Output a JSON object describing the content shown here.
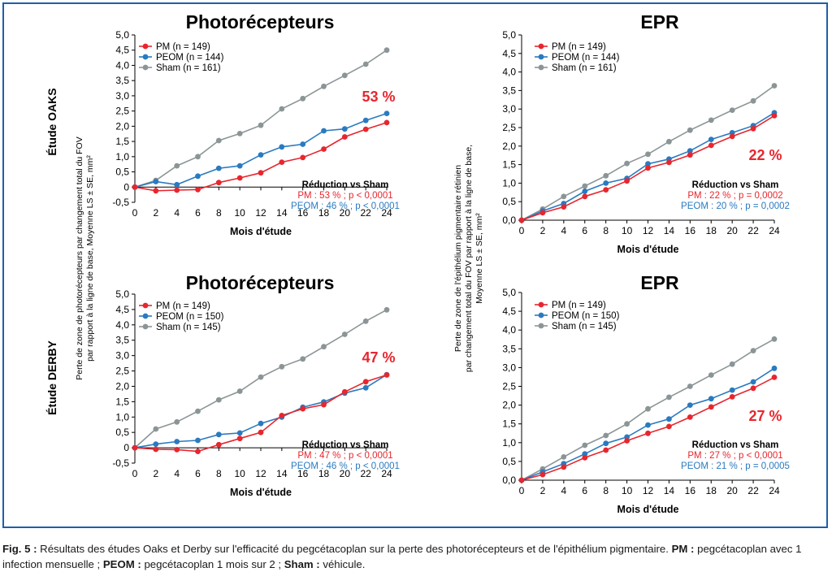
{
  "colors": {
    "pm": "#e8262e",
    "peom": "#2a7ac0",
    "sham": "#8c9596",
    "frame": "#1f5fa8"
  },
  "row_labels": [
    "Étude OAKS",
    "Étude DERBY"
  ],
  "left_ylabel": [
    "Perte de zone de photorécepteurs par changement total du FOV",
    "par rapport à la ligne de base, Moyenne LS ± SE, mm²"
  ],
  "right_ylabel": [
    "Perte de zone de l'épithélium pigmentaire rétinien",
    "par changement total du FOV par rapport à la ligne de base,",
    "Moyenne LS ± SE, mm²"
  ],
  "xlabel": "Mois d'étude",
  "caption": {
    "fig": "Fig. 5 :",
    "text1": " Résultats des études Oaks et Derby sur l'efficacité du pegcétacoplan sur la perte des photorécepteurs et de l'épithélium pigmentaire. ",
    "pm_b": "PM :",
    "pm_t": " pegcétacoplan avec 1 infection mensuelle ; ",
    "peom_b": "PEOM :",
    "peom_t": " pegcétacoplan 1 mois sur 2 ; ",
    "sham_b": "Sham :",
    "sham_t": " véhicule."
  },
  "chart_data": [
    {
      "type": "line",
      "title": "Photorécepteurs",
      "study": "Étude OAKS",
      "x": [
        0,
        2,
        4,
        6,
        8,
        10,
        12,
        14,
        16,
        18,
        20,
        22,
        24
      ],
      "xticks": [
        "0",
        "2",
        "4",
        "6",
        "8",
        "10",
        "12",
        "14",
        "16",
        "18",
        "20",
        "22",
        "24"
      ],
      "ylim": [
        -0.5,
        5.0
      ],
      "yticks": [
        "-0,5",
        "0",
        "0,5",
        "1,0",
        "1,5",
        "2,0",
        "2,5",
        "3,0",
        "3,5",
        "4,0",
        "4,5",
        "5,0"
      ],
      "series": [
        {
          "key": "pm",
          "name": "PM (n = 149)",
          "values": [
            0,
            -0.12,
            -0.1,
            -0.08,
            0.15,
            0.3,
            0.47,
            0.82,
            0.97,
            1.25,
            1.65,
            1.9,
            2.12
          ]
        },
        {
          "key": "peom",
          "name": "PEOM (n = 144)",
          "values": [
            0,
            0.18,
            0.08,
            0.36,
            0.62,
            0.7,
            1.06,
            1.32,
            1.41,
            1.85,
            1.91,
            2.19,
            2.42
          ]
        },
        {
          "key": "sham",
          "name": "Sham (n = 161)",
          "values": [
            0,
            0.22,
            0.7,
            1.0,
            1.53,
            1.76,
            2.03,
            2.57,
            2.91,
            3.31,
            3.67,
            4.04,
            4.5
          ]
        }
      ],
      "reduction": "53 %",
      "note_head": "Réduction vs Sham",
      "note_pm": "PM : 53 % ; p < 0,0001",
      "note_peom": "PEOM : 46 % ; p < 0,0001"
    },
    {
      "type": "line",
      "title": "EPR",
      "study": "Étude OAKS",
      "x": [
        0,
        2,
        4,
        6,
        8,
        10,
        12,
        14,
        16,
        18,
        20,
        22,
        24
      ],
      "xticks": [
        "0",
        "2",
        "4",
        "6",
        "8",
        "10",
        "12",
        "14",
        "16",
        "18",
        "20",
        "22",
        "24"
      ],
      "ylim": [
        0.0,
        5.0
      ],
      "yticks": [
        "0,0",
        "0,5",
        "1,0",
        "1,5",
        "2,0",
        "2,5",
        "3,0",
        "3,5",
        "4,0",
        "4,5",
        "5,0"
      ],
      "series": [
        {
          "key": "pm",
          "name": "PM (n = 149)",
          "values": [
            0,
            0.2,
            0.36,
            0.64,
            0.82,
            1.06,
            1.41,
            1.56,
            1.76,
            2.02,
            2.26,
            2.47,
            2.82
          ]
        },
        {
          "key": "peom",
          "name": "PEOM (n = 144)",
          "values": [
            0,
            0.25,
            0.45,
            0.78,
            1.0,
            1.13,
            1.52,
            1.65,
            1.87,
            2.18,
            2.36,
            2.55,
            2.9
          ]
        },
        {
          "key": "sham",
          "name": "Sham (n = 161)",
          "values": [
            0,
            0.3,
            0.64,
            0.92,
            1.2,
            1.53,
            1.78,
            2.12,
            2.43,
            2.7,
            2.97,
            3.22,
            3.63
          ]
        }
      ],
      "reduction": "22 %",
      "note_head": "Réduction vs Sham",
      "note_pm": "PM : 22 % ; p = 0,0002",
      "note_peom": "PEOM : 20 % ; p = 0,0002"
    },
    {
      "type": "line",
      "title": "Photorécepteurs",
      "study": "Étude DERBY",
      "x": [
        0,
        2,
        4,
        6,
        8,
        10,
        12,
        14,
        16,
        18,
        20,
        22,
        24
      ],
      "xticks": [
        "0",
        "2",
        "4",
        "6",
        "8",
        "10",
        "12",
        "14",
        "16",
        "18",
        "20",
        "22",
        "24"
      ],
      "ylim": [
        -0.5,
        5.0
      ],
      "yticks": [
        "-0,5",
        "0",
        "0,5",
        "1,0",
        "1,5",
        "2,0",
        "2,5",
        "3,0",
        "3,5",
        "4,0",
        "4,5",
        "5,0"
      ],
      "series": [
        {
          "key": "pm",
          "name": "PM (n = 149)",
          "values": [
            0,
            -0.05,
            -0.06,
            -0.12,
            0.1,
            0.3,
            0.5,
            1.05,
            1.27,
            1.4,
            1.82,
            2.15,
            2.37
          ]
        },
        {
          "key": "peom",
          "name": "PEOM (n = 150)",
          "values": [
            0,
            0.12,
            0.2,
            0.24,
            0.43,
            0.48,
            0.79,
            1.0,
            1.32,
            1.49,
            1.78,
            1.95,
            2.38
          ]
        },
        {
          "key": "sham",
          "name": "Sham (n = 145)",
          "values": [
            0,
            0.61,
            0.84,
            1.19,
            1.56,
            1.84,
            2.3,
            2.64,
            2.89,
            3.29,
            3.69,
            4.12,
            4.49
          ]
        }
      ],
      "reduction": "47 %",
      "note_head": "Réduction vs Sham",
      "note_pm": "PM : 47 % ; p < 0,0001",
      "note_peom": "PEOM : 46 % ; p < 0,0001"
    },
    {
      "type": "line",
      "title": "EPR",
      "study": "Étude DERBY",
      "x": [
        0,
        2,
        4,
        6,
        8,
        10,
        12,
        14,
        16,
        18,
        20,
        22,
        24
      ],
      "xticks": [
        "0",
        "2",
        "4",
        "6",
        "8",
        "10",
        "12",
        "14",
        "16",
        "18",
        "20",
        "22",
        "24"
      ],
      "ylim": [
        0.0,
        5.0
      ],
      "yticks": [
        "0,0",
        "0,5",
        "1,0",
        "1,5",
        "2,0",
        "2,5",
        "3,0",
        "3,5",
        "4,0",
        "4,5",
        "5,0"
      ],
      "series": [
        {
          "key": "pm",
          "name": "PM (n = 149)",
          "values": [
            0,
            0.15,
            0.35,
            0.6,
            0.8,
            1.05,
            1.25,
            1.43,
            1.68,
            1.95,
            2.22,
            2.45,
            2.74
          ]
        },
        {
          "key": "peom",
          "name": "PEOM (n = 150)",
          "values": [
            0,
            0.22,
            0.44,
            0.7,
            0.98,
            1.15,
            1.47,
            1.63,
            2.0,
            2.17,
            2.4,
            2.62,
            2.98
          ]
        },
        {
          "key": "sham",
          "name": "Sham (n = 145)",
          "values": [
            0,
            0.3,
            0.62,
            0.93,
            1.19,
            1.5,
            1.9,
            2.21,
            2.5,
            2.8,
            3.09,
            3.45,
            3.76
          ]
        }
      ],
      "reduction": "27 %",
      "note_head": "Réduction vs Sham",
      "note_pm": "PM : 27 % ; p < 0,0001",
      "note_peom": "PEOM : 21 % ; p = 0,0005"
    }
  ]
}
